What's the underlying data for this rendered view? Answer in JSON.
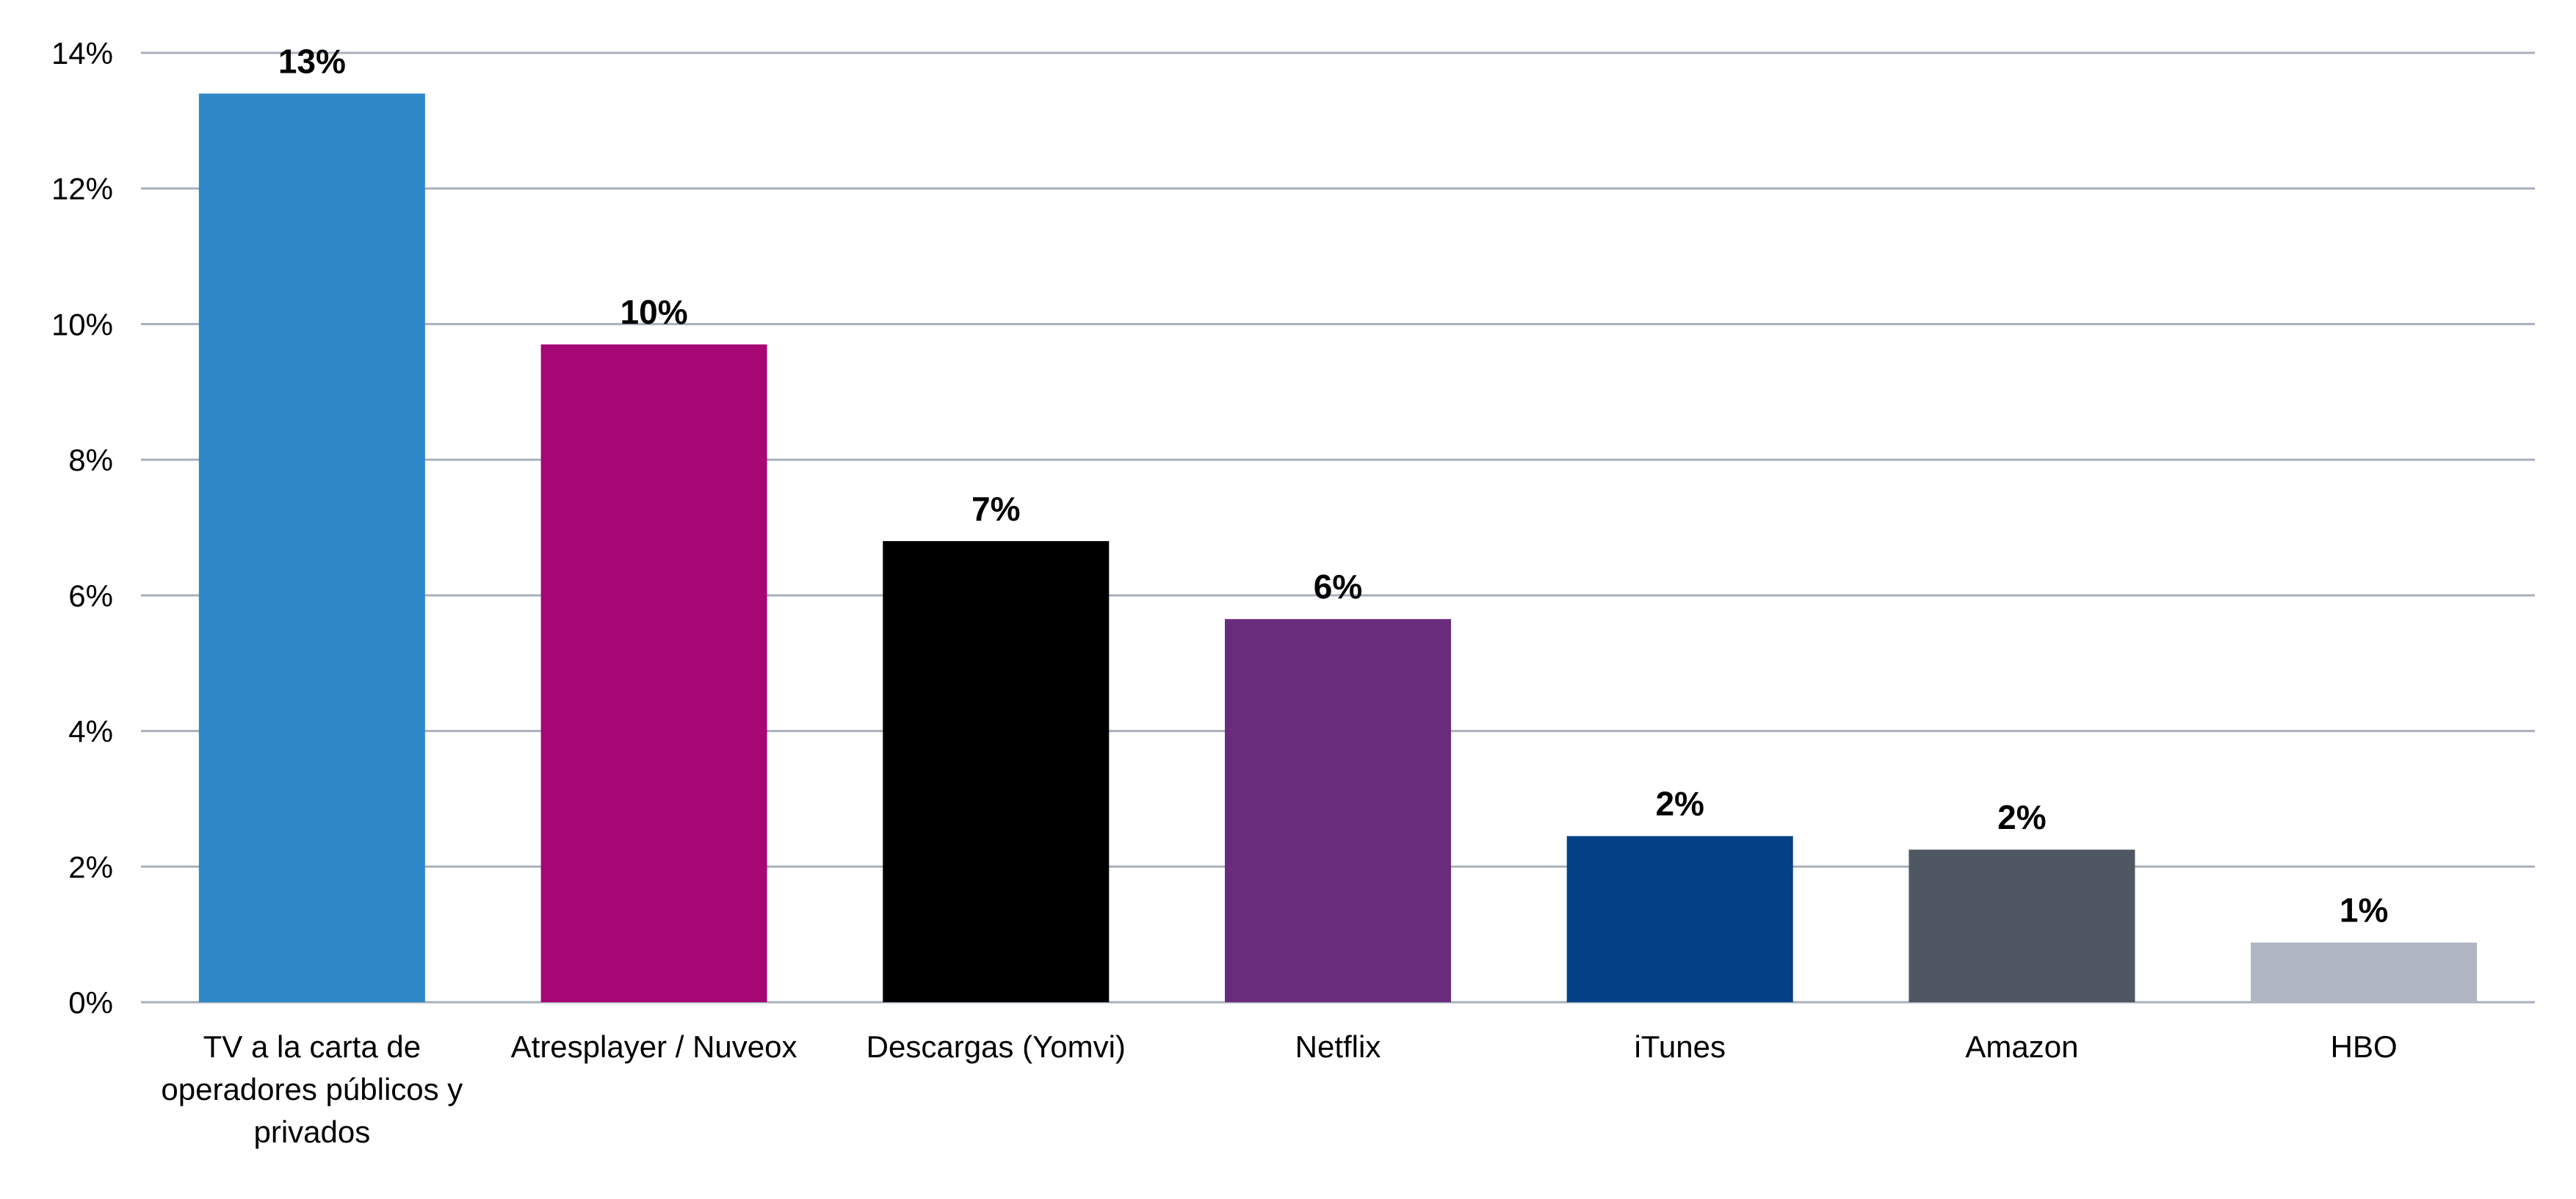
{
  "chart_data": {
    "type": "bar",
    "categories": [
      "TV a la carta de operadores públicos y privados",
      "Atresplayer / Nuveox",
      "Descargas (Yomvi)",
      "Netflix",
      "iTunes",
      "Amazon",
      "HBO"
    ],
    "category_label_lines": [
      [
        "TV a la carta de",
        "operadores públicos y",
        "privados"
      ],
      [
        "Atresplayer / Nuveox"
      ],
      [
        "Descargas (Yomvi)"
      ],
      [
        "Netflix"
      ],
      [
        "iTunes"
      ],
      [
        "Amazon"
      ],
      [
        "HBO"
      ]
    ],
    "values": [
      13.4,
      9.7,
      6.8,
      5.65,
      2.45,
      2.25,
      0.88
    ],
    "data_labels": [
      "13%",
      "10%",
      "7%",
      "6%",
      "2%",
      "2%",
      "1%"
    ],
    "colors": [
      "#2e87c6",
      "#a50775",
      "#000000",
      "#692c7d",
      "#044085",
      "#4f5862",
      "#afb6c1"
    ],
    "ylim": [
      0,
      14
    ],
    "y_ticks": [
      0,
      2,
      4,
      6,
      8,
      10,
      12,
      14
    ],
    "y_tick_labels": [
      "0%",
      "2%",
      "4%",
      "6%",
      "8%",
      "10%",
      "12%",
      "14%"
    ],
    "grid": true,
    "legend": "none",
    "title": "",
    "xlabel": "",
    "ylabel": ""
  }
}
